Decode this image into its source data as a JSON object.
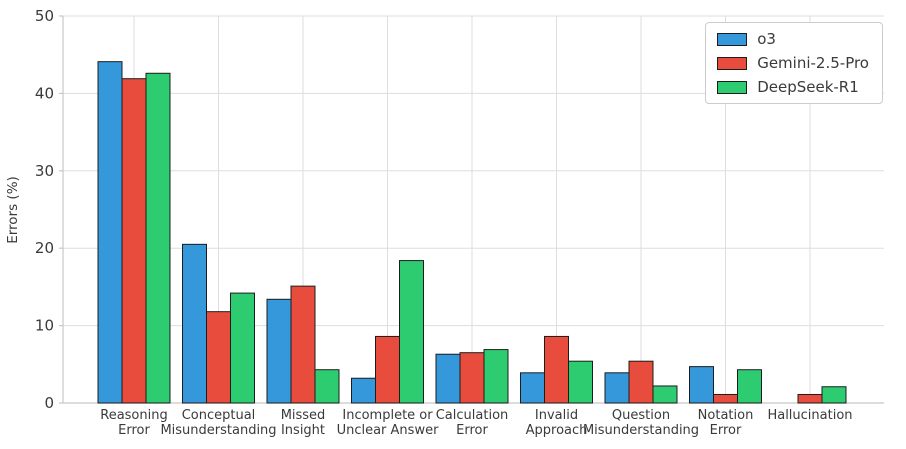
{
  "chart_data": {
    "type": "bar",
    "title": "",
    "xlabel": "",
    "ylabel": "Errors (%)",
    "ylim": [
      0,
      50
    ],
    "yticks": [
      0,
      10,
      20,
      30,
      40,
      50
    ],
    "grid": true,
    "legend_position": "upper right",
    "categories": [
      "Reasoning\nError",
      "Conceptual\nMisunderstanding",
      "Missed\nInsight",
      "Incomplete or\nUnclear Answer",
      "Calculation\nError",
      "Invalid\nApproach",
      "Question\nMisunderstanding",
      "Notation\nError",
      "Hallucination"
    ],
    "series": [
      {
        "name": "o3",
        "color": "#3498db",
        "values": [
          44.1,
          20.5,
          13.4,
          3.2,
          6.3,
          3.9,
          3.9,
          4.7,
          0
        ]
      },
      {
        "name": "Gemini-2.5-Pro",
        "color": "#e74c3c",
        "values": [
          41.9,
          11.8,
          15.1,
          8.6,
          6.5,
          8.6,
          5.4,
          1.1,
          1.1
        ]
      },
      {
        "name": "DeepSeek-R1",
        "color": "#2ecc71",
        "values": [
          42.6,
          14.2,
          4.3,
          18.4,
          6.9,
          5.4,
          2.2,
          4.3,
          2.1
        ]
      }
    ],
    "bar_edge_color": "#1c1c1c",
    "grid_color": "#dedede",
    "spine_color": "#c7c7c7",
    "text_color": "#3a3a3a"
  }
}
